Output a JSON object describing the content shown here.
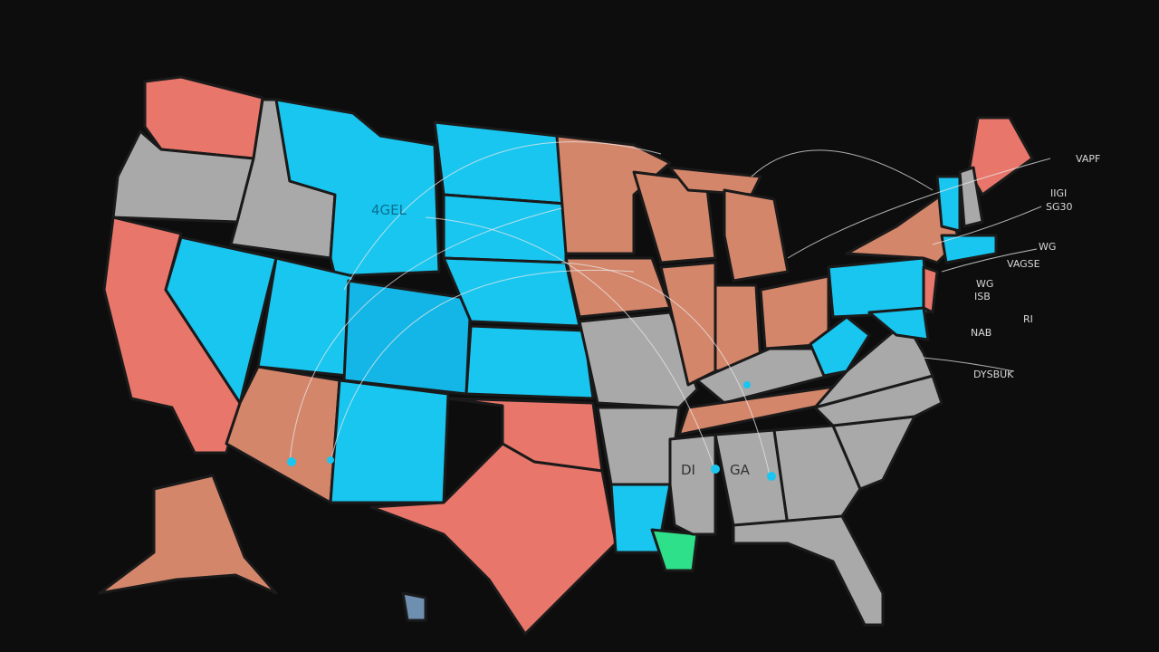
{
  "map_labels": [
    "4GEL",
    "VAPF",
    "IIGI",
    "SG30",
    "WG",
    "VAGSE",
    "WG",
    "ISB",
    "RI",
    "NAB",
    "DYSBUK",
    "DI",
    "GA"
  ]
}
